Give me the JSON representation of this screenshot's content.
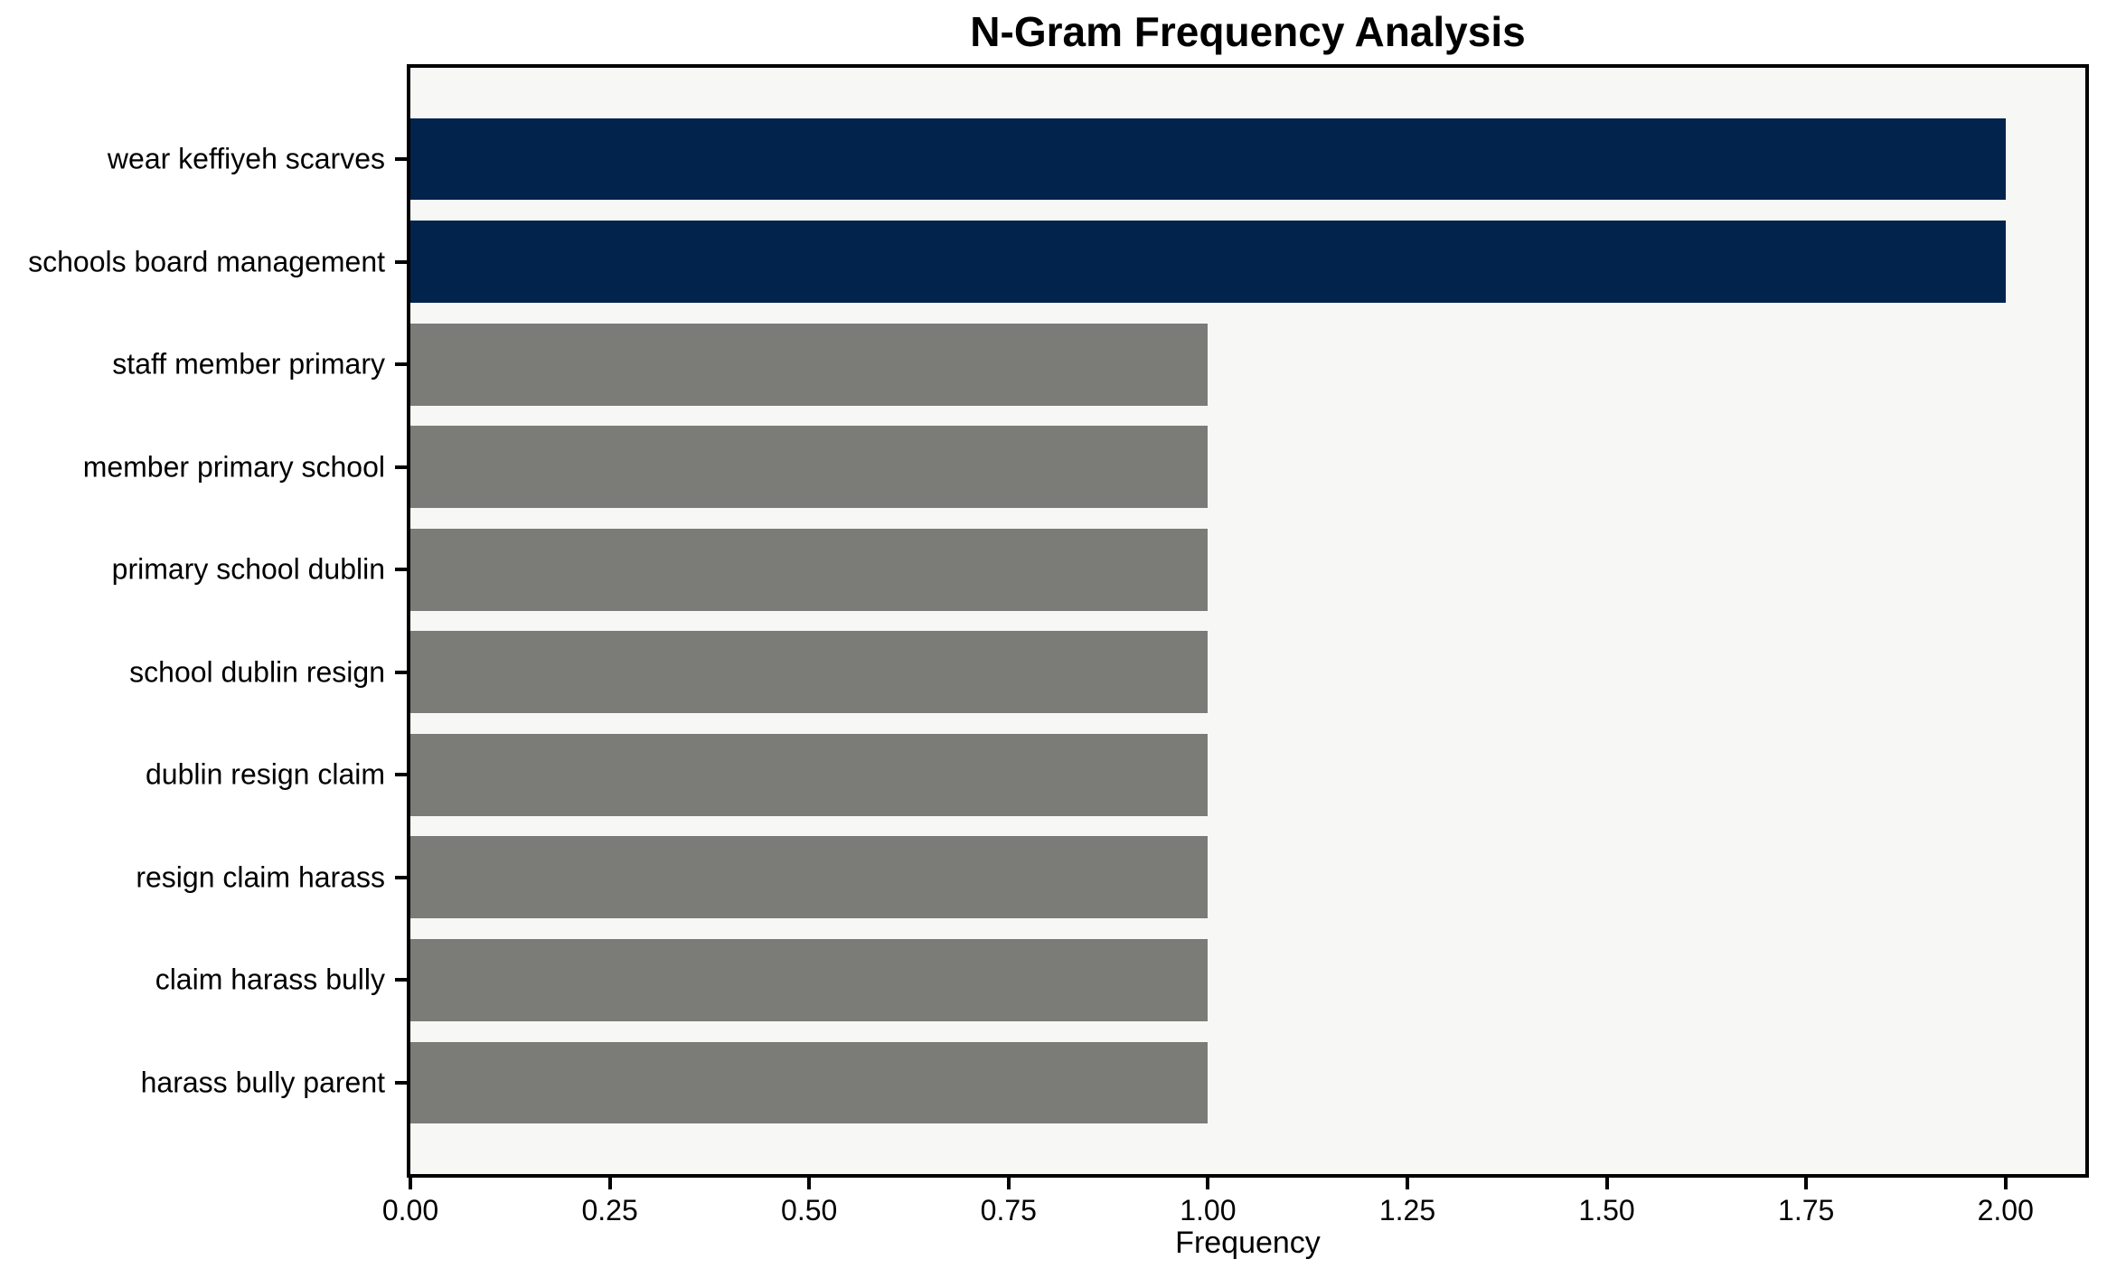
{
  "chart_data": {
    "type": "bar",
    "orientation": "horizontal",
    "title": "N-Gram Frequency Analysis",
    "xlabel": "Frequency",
    "ylabel": "",
    "categories": [
      "wear keffiyeh scarves",
      "schools board management",
      "staff member primary",
      "member primary school",
      "primary school dublin",
      "school dublin resign",
      "dublin resign claim",
      "resign claim harass",
      "claim harass bully",
      "harass bully parent"
    ],
    "values": [
      2,
      2,
      1,
      1,
      1,
      1,
      1,
      1,
      1,
      1
    ],
    "bar_colors": [
      "#02234C",
      "#02234C",
      "#7B7B77",
      "#7B7B77",
      "#7B7B77",
      "#7B7B77",
      "#7B7B77",
      "#7B7B77",
      "#7B7B77",
      "#7B7B77"
    ],
    "xlim": [
      0,
      2.1
    ],
    "x_ticks": [
      {
        "value": 0.0,
        "label": "0.00"
      },
      {
        "value": 0.25,
        "label": "0.25"
      },
      {
        "value": 0.5,
        "label": "0.50"
      },
      {
        "value": 0.75,
        "label": "0.75"
      },
      {
        "value": 1.0,
        "label": "1.00"
      },
      {
        "value": 1.25,
        "label": "1.25"
      },
      {
        "value": 1.5,
        "label": "1.50"
      },
      {
        "value": 1.75,
        "label": "1.75"
      },
      {
        "value": 2.0,
        "label": "2.00"
      }
    ],
    "grid": false,
    "legend": "none",
    "colors": {
      "highlight_bar": "#02234C",
      "default_bar": "#7B7B77",
      "plot_background": "#F7F7F5",
      "figure_background": "#FFFFFF",
      "axis_line": "#000000",
      "text": "#000000"
    }
  }
}
